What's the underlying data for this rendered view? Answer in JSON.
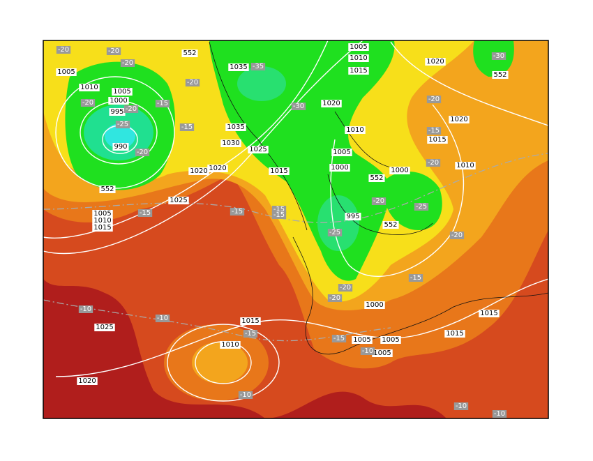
{
  "isobar_labels": [
    "1005",
    "1010",
    "1005",
    "1000",
    "995",
    "990",
    "1035",
    "1005",
    "1010",
    "1015",
    "1020",
    "1020",
    "1035",
    "1030",
    "1025",
    "1020",
    "1020",
    "1015",
    "1010",
    "1005",
    "1000",
    "1000",
    "1025",
    "1005",
    "1010",
    "1015",
    "995",
    "1015",
    "1020",
    "1010",
    "1000",
    "1025",
    "1015",
    "1010",
    "1005",
    "1005",
    "1005",
    "1020",
    "1015",
    "1015"
  ],
  "height_labels": [
    "552",
    "552",
    "552",
    "552",
    "552"
  ],
  "temperature_labels": [
    "-20",
    "-20",
    "-20",
    "-20",
    "-20",
    "-25",
    "-20",
    "-15",
    "-20",
    "-15",
    "-35",
    "-30",
    "-20",
    "-15",
    "-20",
    "-20",
    "-25",
    "-20",
    "-15",
    "-15",
    "-15",
    "-25",
    "-20",
    "-20",
    "-15",
    "-10",
    "-10",
    "-15",
    "-15",
    "-10",
    "-10",
    "-10",
    "-10",
    "-30",
    "-15"
  ]
}
